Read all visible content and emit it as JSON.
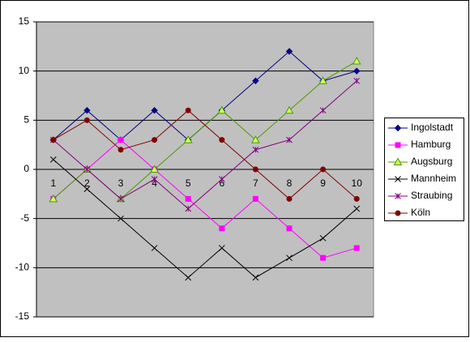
{
  "chart_data": {
    "type": "line",
    "categories": [
      "1",
      "2",
      "3",
      "4",
      "5",
      "6",
      "7",
      "8",
      "9",
      "10"
    ],
    "series": [
      {
        "name": "Ingolstadt",
        "color": "#000080",
        "marker": "diamond",
        "values": [
          3,
          6,
          3,
          6,
          3,
          6,
          9,
          12,
          9,
          10
        ]
      },
      {
        "name": "Hamburg",
        "color": "#ff00ff",
        "marker": "square",
        "values": [
          -3,
          0,
          3,
          0,
          -3,
          -6,
          -3,
          -6,
          -9,
          -8
        ]
      },
      {
        "name": "Augsburg",
        "color": "#4c9a00",
        "marker": "triangle",
        "values": [
          -3,
          0,
          -3,
          0,
          3,
          6,
          3,
          6,
          9,
          11
        ]
      },
      {
        "name": "Mannheim",
        "color": "#000000",
        "marker": "x",
        "values": [
          1,
          -2,
          -5,
          -8,
          -11,
          -8,
          -11,
          -9,
          -7,
          -4
        ]
      },
      {
        "name": "Straubing",
        "color": "#800080",
        "marker": "star",
        "values": [
          3,
          0,
          -3,
          -1,
          -4,
          -1,
          2,
          3,
          6,
          9
        ]
      },
      {
        "name": "Köln",
        "color": "#800000",
        "marker": "circle",
        "values": [
          3,
          5,
          2,
          3,
          6,
          3,
          0,
          -3,
          0,
          -3
        ]
      }
    ],
    "ylim": [
      -15,
      15
    ],
    "yticks": [
      -15,
      -10,
      -5,
      0,
      5,
      10,
      15
    ],
    "grid": true,
    "legend": "right"
  }
}
